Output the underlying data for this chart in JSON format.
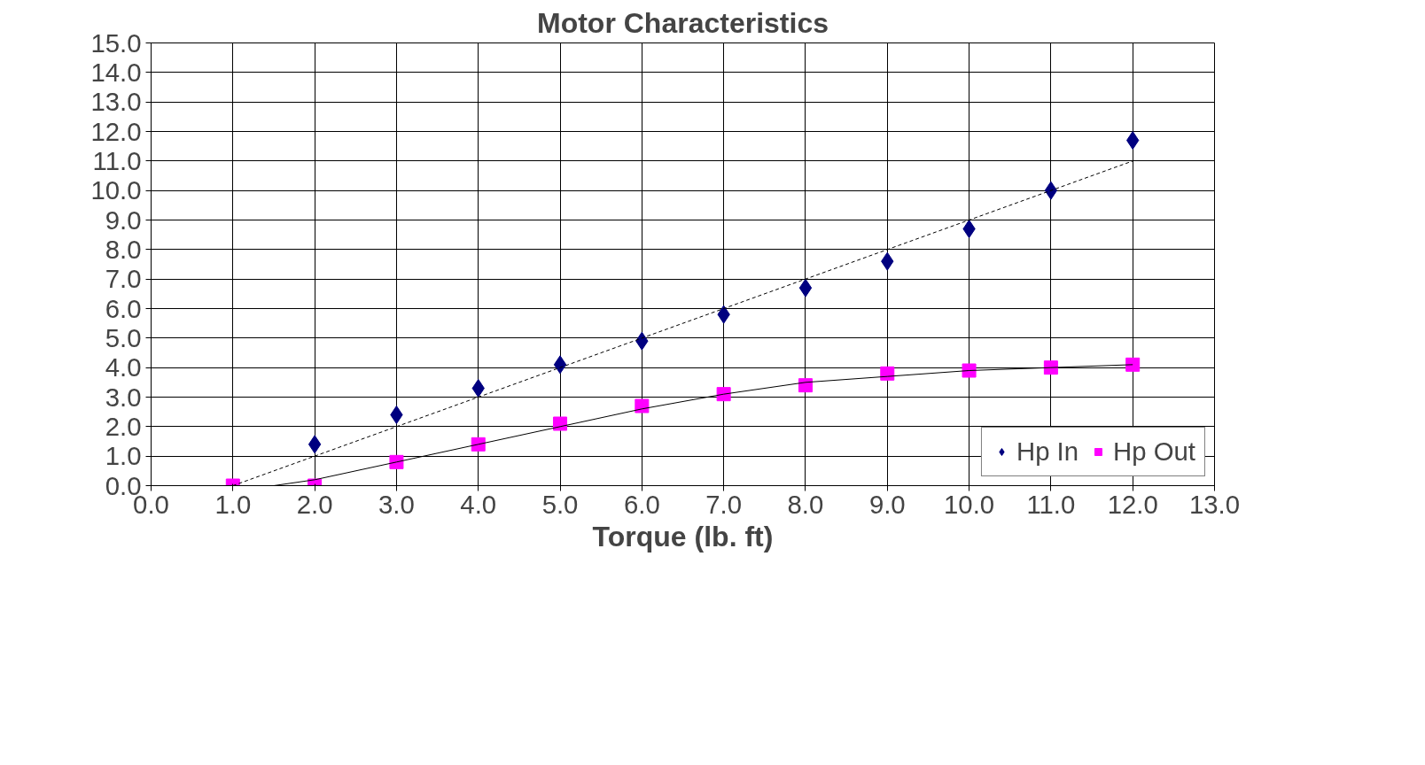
{
  "chart_data": {
    "type": "scatter",
    "title": "Motor Characteristics",
    "xlabel": "Torque (lb. ft)",
    "x": [
      1,
      2,
      3,
      4,
      5,
      6,
      7,
      8,
      9,
      10,
      11,
      12
    ],
    "series": [
      {
        "name": "Hp In",
        "marker": "diamond",
        "color": "#000080",
        "values": [
          null,
          1.4,
          2.4,
          3.3,
          4.1,
          4.9,
          5.8,
          6.7,
          7.6,
          8.7,
          10.0,
          11.7
        ]
      },
      {
        "name": "Hp Out",
        "marker": "square",
        "color": "#ff00ff",
        "values": [
          0,
          0,
          0.8,
          1.4,
          2.1,
          2.7,
          3.1,
          3.4,
          3.8,
          3.9,
          4.0,
          4.1
        ]
      },
      {
        "type": "line",
        "marker": "none",
        "line_style": "dashed",
        "color": "#000000",
        "x": [
          1,
          12
        ],
        "values": [
          0,
          11.0
        ]
      },
      {
        "type": "line",
        "marker": "none",
        "line_style": "solid",
        "color": "#000000",
        "x": [
          1.5,
          2,
          3,
          4,
          5,
          6,
          7,
          8,
          9,
          10,
          11,
          12
        ],
        "values": [
          0,
          0.2,
          0.8,
          1.4,
          2.0,
          2.6,
          3.1,
          3.5,
          3.7,
          3.9,
          4.0,
          4.1
        ]
      }
    ],
    "xlim": [
      0,
      13
    ],
    "ylim": [
      0,
      15
    ],
    "xticks": [
      {
        "value": 0,
        "label": "0.0"
      },
      {
        "value": 1,
        "label": "1.0"
      },
      {
        "value": 2,
        "label": "2.0"
      },
      {
        "value": 3,
        "label": "3.0"
      },
      {
        "value": 4,
        "label": "4.0"
      },
      {
        "value": 5,
        "label": "5.0"
      },
      {
        "value": 6,
        "label": "6.0"
      },
      {
        "value": 7,
        "label": "7.0"
      },
      {
        "value": 8,
        "label": "8.0"
      },
      {
        "value": 9,
        "label": "9.0"
      },
      {
        "value": 10,
        "label": "10.0"
      },
      {
        "value": 11,
        "label": "11.0"
      },
      {
        "value": 12,
        "label": "12.0"
      },
      {
        "value": 13,
        "label": "13.0"
      }
    ],
    "yticks": [
      {
        "value": 0,
        "label": "0.0"
      },
      {
        "value": 1,
        "label": "1.0"
      },
      {
        "value": 2,
        "label": "2.0"
      },
      {
        "value": 3,
        "label": "3.0"
      },
      {
        "value": 4,
        "label": "4.0"
      },
      {
        "value": 5,
        "label": "5.0"
      },
      {
        "value": 6,
        "label": "6.0"
      },
      {
        "value": 7,
        "label": "7.0"
      },
      {
        "value": 8,
        "label": "8.0"
      },
      {
        "value": 9,
        "label": "9.0"
      },
      {
        "value": 10,
        "label": "10.0"
      },
      {
        "value": 11,
        "label": "11.0"
      },
      {
        "value": 12,
        "label": "12.0"
      },
      {
        "value": 13,
        "label": "13.0"
      },
      {
        "value": 14,
        "label": "14.0"
      },
      {
        "value": 15,
        "label": "15.0"
      }
    ],
    "grid": true,
    "legend": "bottom right"
  }
}
